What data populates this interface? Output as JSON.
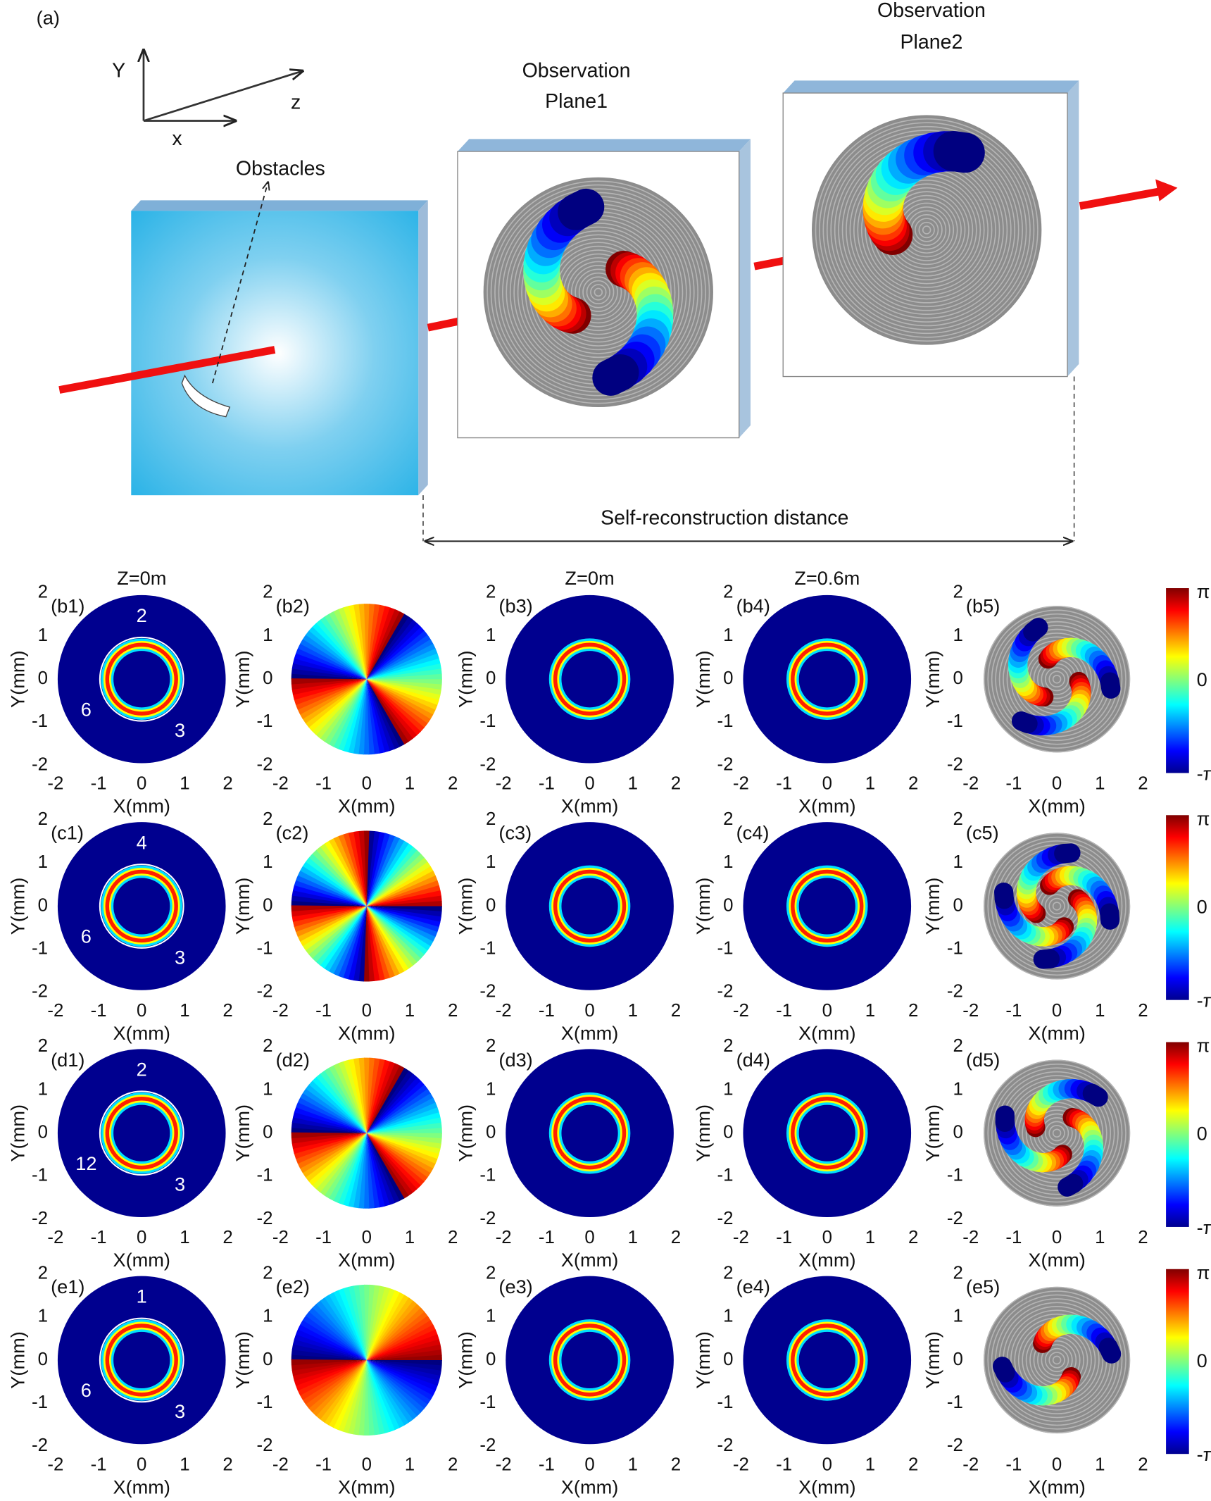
{
  "panel_a": {
    "label": "(a)",
    "axes": {
      "y": "Y",
      "z": "z",
      "x": "x"
    },
    "obstacles": "Obstacles",
    "plane1": [
      "Observation",
      "Plane1"
    ],
    "plane2": [
      "Observation",
      "Plane2"
    ],
    "distance": "Self-reconstruction distance"
  },
  "grid": {
    "titles": [
      "Z=0m",
      "Z=0m",
      "Z=0.6m"
    ],
    "x_label": "X(mm)",
    "y_label": "Y(mm)",
    "ticks": [
      -2,
      -1,
      0,
      1,
      2
    ],
    "colorbar": [
      "π",
      "0",
      "-π"
    ],
    "rows": [
      {
        "panels": [
          "(b1)",
          "(b2)",
          "(b3)",
          "(b4)",
          "(b5)"
        ],
        "ring_numbers": [
          "2",
          "6",
          "3"
        ]
      },
      {
        "panels": [
          "(c1)",
          "(c2)",
          "(c3)",
          "(c4)",
          "(c5)"
        ],
        "ring_numbers": [
          "4",
          "6",
          "3"
        ]
      },
      {
        "panels": [
          "(d1)",
          "(d2)",
          "(d3)",
          "(d4)",
          "(d5)"
        ],
        "ring_numbers": [
          "2",
          "12",
          "3"
        ]
      },
      {
        "panels": [
          "(e1)",
          "(e2)",
          "(e3)",
          "(e4)",
          "(e5)"
        ],
        "ring_numbers": [
          "1",
          "6",
          "3"
        ]
      }
    ]
  }
}
